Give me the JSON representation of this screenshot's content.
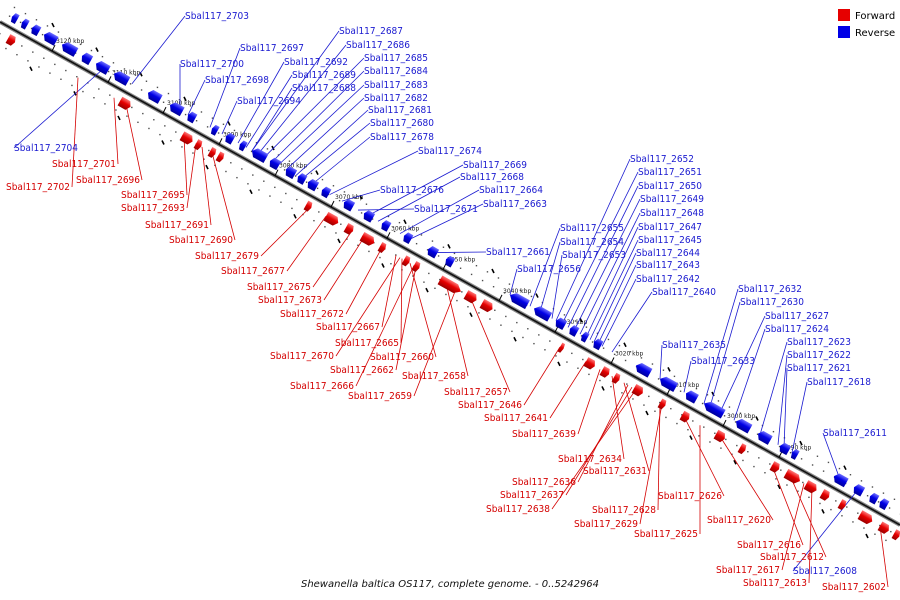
{
  "caption": "Shewanella baltica OS117, complete genome. - 0..5242964",
  "legend": [
    {
      "label": "Forward",
      "color": "#e60000"
    },
    {
      "label": "Reverse",
      "color": "#0000e6"
    }
  ],
  "axis_ticks": [
    "3120 kbp",
    "3110 kbp",
    "3100 kbp",
    "3090 kbp",
    "3080 kbp",
    "3070 kbp",
    "3060 kbp",
    "3050 kbp",
    "3040 kbp",
    "3030 kbp",
    "3020 kbp",
    "3010 kbp",
    "3000 kbp",
    "2990 kbp"
  ],
  "reverse_genes": [
    "Sbal117_2703",
    "Sbal117_2697",
    "Sbal117_2700",
    "Sbal117_2698",
    "Sbal117_2694",
    "Sbal117_2704",
    "Sbal117_2687",
    "Sbal117_2686",
    "Sbal117_2692",
    "Sbal117_2685",
    "Sbal117_2689",
    "Sbal117_2684",
    "Sbal117_2688",
    "Sbal117_2683",
    "Sbal117_2682",
    "Sbal117_2681",
    "Sbal117_2680",
    "Sbal117_2678",
    "Sbal117_2674",
    "Sbal117_2669",
    "Sbal117_2668",
    "Sbal117_2676",
    "Sbal117_2664",
    "Sbal117_2663",
    "Sbal117_2671",
    "Sbal117_2661",
    "Sbal117_2656",
    "Sbal117_2655",
    "Sbal117_2654",
    "Sbal117_2653",
    "Sbal117_2652",
    "Sbal117_2651",
    "Sbal117_2650",
    "Sbal117_2649",
    "Sbal117_2648",
    "Sbal117_2647",
    "Sbal117_2645",
    "Sbal117_2644",
    "Sbal117_2643",
    "Sbal117_2642",
    "Sbal117_2640",
    "Sbal117_2635",
    "Sbal117_2633",
    "Sbal117_2632",
    "Sbal117_2630",
    "Sbal117_2627",
    "Sbal117_2624",
    "Sbal117_2623",
    "Sbal117_2622",
    "Sbal117_2621",
    "Sbal117_2618",
    "Sbal117_2611",
    "Sbal117_2608"
  ],
  "forward_genes": [
    "Sbal117_2701",
    "Sbal117_2696",
    "Sbal117_2702",
    "Sbal117_2695",
    "Sbal117_2693",
    "Sbal117_2691",
    "Sbal117_2690",
    "Sbal117_2679",
    "Sbal117_2677",
    "Sbal117_2675",
    "Sbal117_2673",
    "Sbal117_2672",
    "Sbal117_2667",
    "Sbal117_2665",
    "Sbal117_2670",
    "Sbal117_2660",
    "Sbal117_2662",
    "Sbal117_2666",
    "Sbal117_2658",
    "Sbal117_2659",
    "Sbal117_2657",
    "Sbal117_2646",
    "Sbal117_2641",
    "Sbal117_2639",
    "Sbal117_2634",
    "Sbal117_2631",
    "Sbal117_2636",
    "Sbal117_2637",
    "Sbal117_2638",
    "Sbal117_2628",
    "Sbal117_2626",
    "Sbal117_2629",
    "Sbal117_2620",
    "Sbal117_2625",
    "Sbal117_2616",
    "Sbal117_2612",
    "Sbal117_2617",
    "Sbal117_2613",
    "Sbal117_2602"
  ]
}
